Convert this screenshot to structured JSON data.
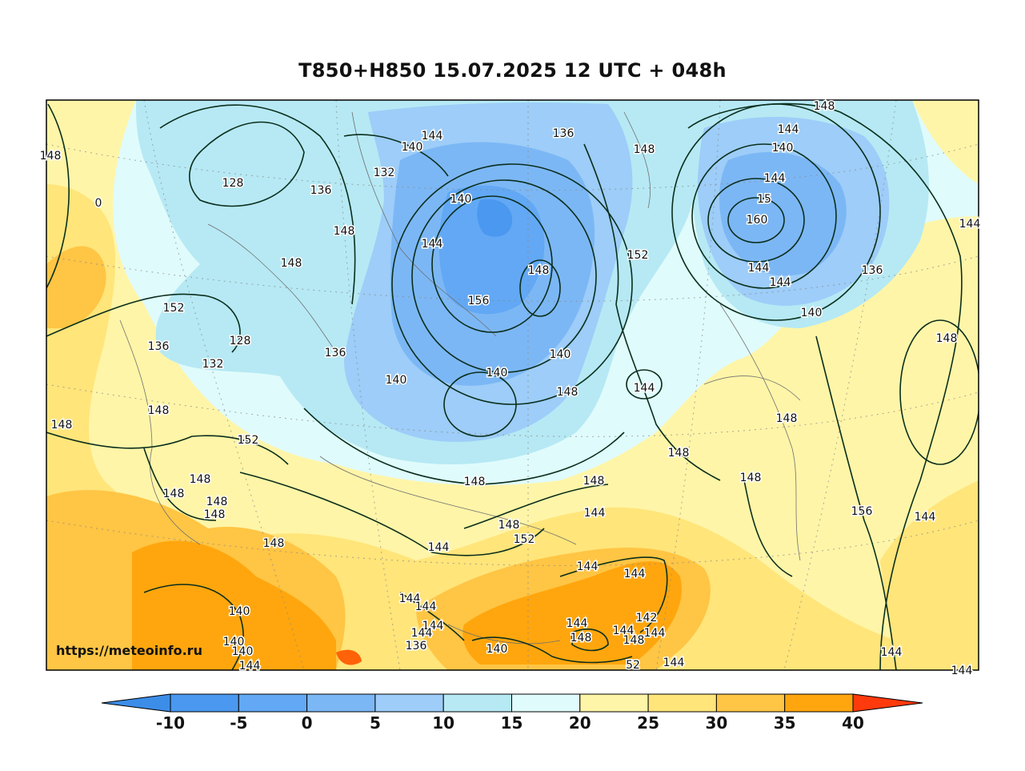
{
  "title": "T850+H850 15.07.2025 12 UTC + 048h",
  "credit": "https://meteoinfo.ru",
  "colorbar": {
    "ticks": [
      "-10",
      "-5",
      "0",
      "5",
      "10",
      "15",
      "20",
      "25",
      "30",
      "35",
      "40"
    ],
    "colors": [
      "#4a98f0",
      "#62a8f4",
      "#7cb7f5",
      "#9dcdf8",
      "#b6e9f4",
      "#e0fbfc",
      "#fff5a8",
      "#ffe57a",
      "#ffc544",
      "#ffa60e",
      "#ff6208"
    ],
    "under_color": "#3c8de8",
    "over_color": "#ff3a0c"
  },
  "fill_colors": {
    "cold_core": "#4a98f0",
    "very_cold": "#62a8f4",
    "cold": "#7cb7f5",
    "cool": "#9dcdf8",
    "mild_cool": "#b6e9f4",
    "mild": "#e0fbfc",
    "warm": "#fff5a8",
    "warmer": "#ffe57a",
    "hot": "#ffc544",
    "very_hot": "#ffa60e",
    "extreme": "#ff6208"
  },
  "contour_color": "#0b2e1c",
  "contour_labels": [
    "148",
    "144",
    "140",
    "148",
    "144",
    "140",
    "136",
    "132",
    "128",
    "136",
    "140",
    "144",
    "15",
    "160",
    "144",
    "148",
    "144",
    "148",
    "148",
    "152",
    "152",
    "156",
    "0",
    "148",
    "144",
    "144",
    "140",
    "136",
    "140",
    "128",
    "132",
    "136",
    "136",
    "140",
    "140",
    "148",
    "144",
    "148",
    "148",
    "148",
    "152",
    "148",
    "148",
    "148",
    "148",
    "148",
    "148",
    "148",
    "148",
    "148",
    "144",
    "148",
    "152",
    "156",
    "144",
    "148",
    "144",
    "144",
    "144",
    "144",
    "144",
    "144",
    "144",
    "136",
    "140",
    "140",
    "140",
    "144",
    "140",
    "144",
    "148",
    "144",
    "142",
    "148",
    "144",
    "144",
    "52",
    "144",
    "144"
  ]
}
